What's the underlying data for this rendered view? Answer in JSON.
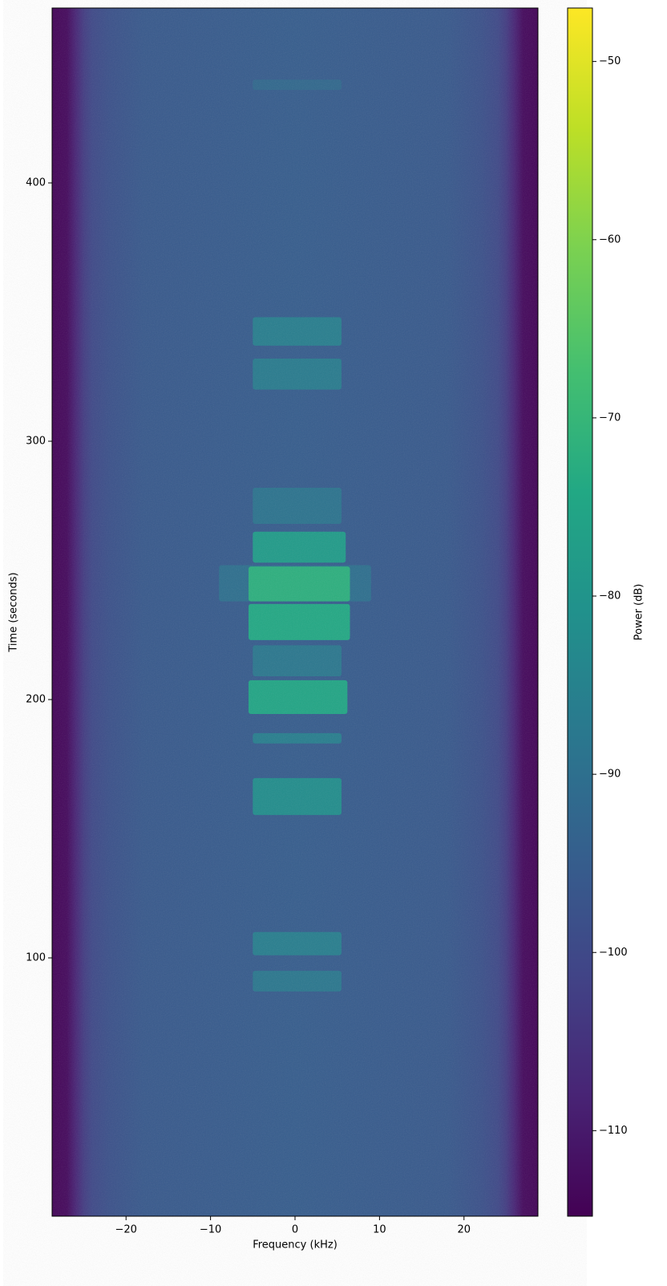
{
  "chart_data": {
    "type": "spectrogram",
    "xlabel": "Frequency (kHz)",
    "ylabel": "Time (seconds)",
    "colorbar_label": "Power (dB)",
    "colormap": "viridis",
    "xlim": [
      -28.75,
      28.75
    ],
    "ylim": [
      0,
      467.7
    ],
    "clim": [
      -114.8,
      -47
    ],
    "xticks": [
      {
        "value": -20,
        "label": "−20"
      },
      {
        "value": -10,
        "label": "−10"
      },
      0,
      10,
      20
    ],
    "yticks": [
      100,
      200,
      300,
      400
    ],
    "cticks": [
      {
        "value": -50,
        "label": "−50"
      },
      {
        "value": -60,
        "label": "−60"
      },
      {
        "value": -70,
        "label": "−70"
      },
      {
        "value": -80,
        "label": "−80"
      },
      {
        "value": -90,
        "label": "−90"
      },
      {
        "value": -100,
        "label": "−100"
      },
      {
        "value": -110,
        "label": "−110"
      }
    ],
    "background": {
      "frequencies": [
        -28.75,
        -27,
        -26,
        -25,
        -24,
        -22,
        -18,
        0,
        18,
        22,
        24,
        25,
        26,
        27,
        28.75
      ],
      "power": [
        -114,
        -113,
        -108,
        -103,
        -100,
        -98,
        -96,
        -95,
        -96,
        -98,
        -100,
        -103,
        -108,
        -113,
        -114
      ]
    },
    "bursts": [
      {
        "t": [
          238,
          252
        ],
        "f": [
          -9,
          9
        ],
        "power": [
          -90
        ]
      },
      {
        "t": [
          253,
          265
        ],
        "f": [
          -5,
          6
        ],
        "power": [
          -78
        ]
      },
      {
        "t": [
          238,
          251.5
        ],
        "f": [
          -5.5,
          6.5
        ],
        "power": [
          -72
        ]
      },
      {
        "t": [
          223,
          237
        ],
        "f": [
          -5.5,
          6.5
        ],
        "power": [
          -74
        ]
      },
      {
        "t": [
          209,
          221
        ],
        "f": [
          -5,
          5.5
        ],
        "power": [
          -88
        ]
      },
      {
        "t": [
          194.4,
          207.5
        ],
        "f": [
          -5.5,
          6.2
        ],
        "power": [
          -75
        ]
      },
      {
        "t": [
          183,
          187
        ],
        "f": [
          -5,
          5.5
        ],
        "power": [
          -86
        ]
      },
      {
        "t": [
          155.3,
          169.6
        ],
        "f": [
          -5,
          5.5
        ],
        "power": [
          -82
        ]
      },
      {
        "t": [
          101,
          110
        ],
        "f": [
          -5,
          5.5
        ],
        "power": [
          -86
        ]
      },
      {
        "t": [
          87,
          95
        ],
        "f": [
          -5,
          5.5
        ],
        "power": [
          -88
        ]
      },
      {
        "t": [
          268,
          282
        ],
        "f": [
          -5,
          5.5
        ],
        "power": [
          -89
        ]
      },
      {
        "t": [
          320,
          332
        ],
        "f": [
          -5,
          5.5
        ],
        "power": [
          -87
        ]
      },
      {
        "t": [
          337,
          348
        ],
        "f": [
          -5,
          5.5
        ],
        "power": [
          -86
        ]
      },
      {
        "t": [
          436,
          440
        ],
        "f": [
          -5,
          5.5
        ],
        "power": [
          -92
        ]
      }
    ]
  }
}
